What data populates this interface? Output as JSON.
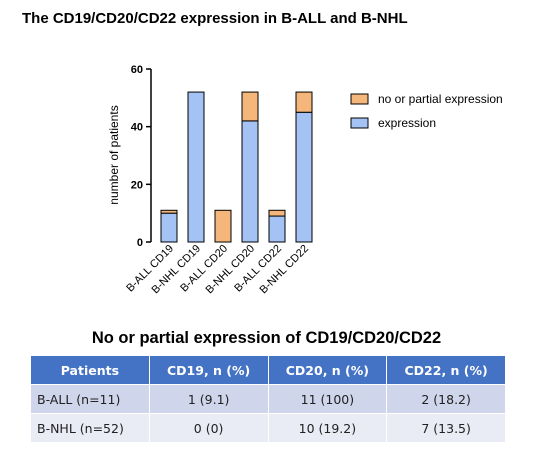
{
  "title": "The CD19/CD20/CD22 expression in B-ALL and B-NHL",
  "chart_data": {
    "type": "bar",
    "stacked": true,
    "categories": [
      "B-ALL CD19",
      "B-NHL CD19",
      "B-ALL CD20",
      "B-NHL CD20",
      "B-ALL CD22",
      "B-NHL CD22"
    ],
    "series": [
      {
        "name": "expression",
        "values": [
          10,
          52,
          0,
          42,
          9,
          45
        ],
        "color": "#a4c2f4"
      },
      {
        "name": "no or partial expression",
        "values": [
          1,
          0,
          11,
          10,
          2,
          7
        ],
        "color": "#f4b67a"
      }
    ],
    "ylabel": "number of patients",
    "ylim": [
      0,
      60
    ],
    "yticks": [
      0,
      20,
      40,
      60
    ],
    "legend_position": "right"
  },
  "table": {
    "title": "No or partial expression of CD19/CD20/CD22",
    "headers": [
      "Patients",
      "CD19, n (%)",
      "CD20, n (%)",
      "CD22, n (%)"
    ],
    "rows": [
      [
        "B-ALL (n=11)",
        "1 (9.1)",
        "11 (100)",
        "2 (18.2)"
      ],
      [
        "B-NHL (n=52)",
        "0 (0)",
        "10 (19.2)",
        "7 (13.5)"
      ]
    ],
    "header_color": "#4472c4"
  }
}
